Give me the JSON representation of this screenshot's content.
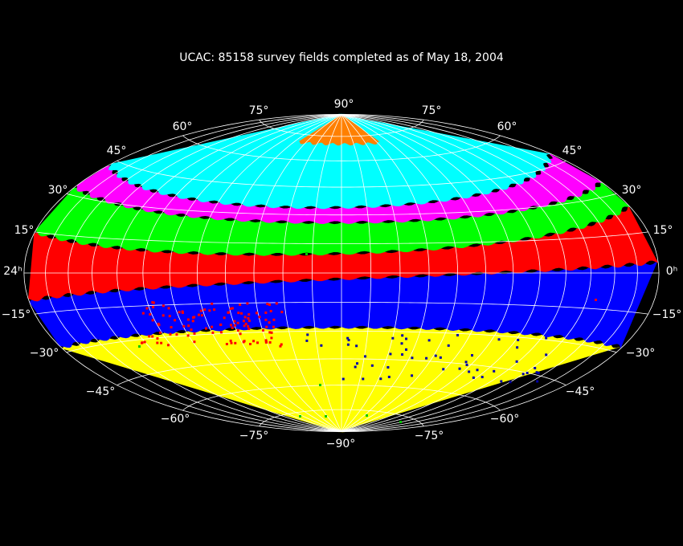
{
  "title": "UCAC: 85158 survey fields completed as of May 18, 2004",
  "labels": [
    "90°",
    "75°",
    "75°",
    "60°",
    "60°",
    "45°",
    "45°",
    "30°",
    "30°",
    "15°",
    "15°",
    "24ʰ",
    "0ʰ",
    "−15°",
    "−15°",
    "−30°",
    "−30°",
    "−45°",
    "−45°",
    "−60°",
    "−60°",
    "−75°",
    "−75°",
    "−90°"
  ]
}
